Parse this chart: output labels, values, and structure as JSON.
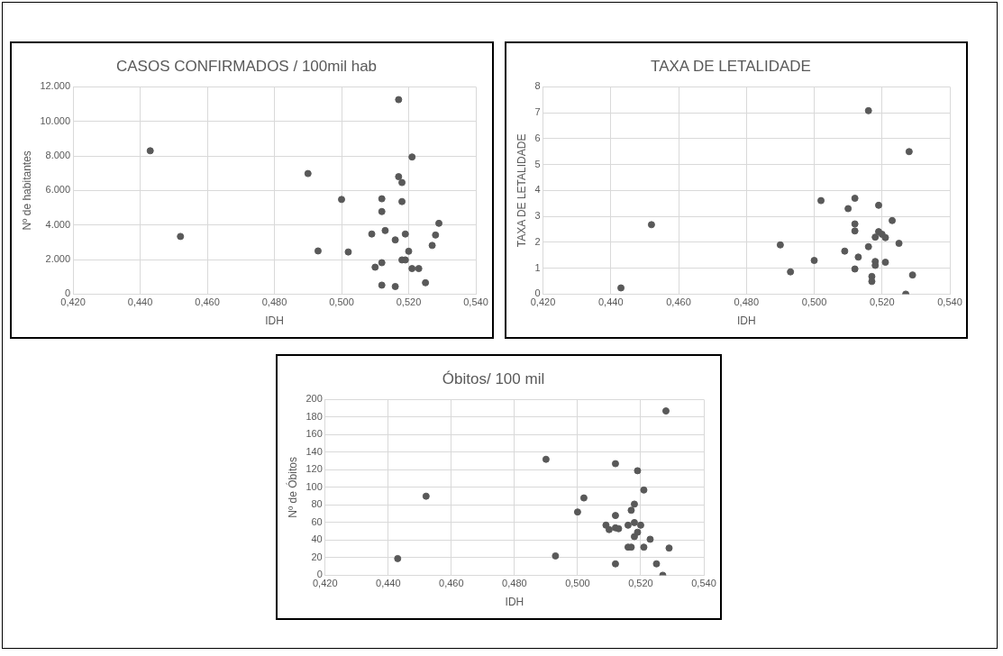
{
  "chart_data": [
    {
      "type": "scatter",
      "title": "CASOS CONFIRMADOS / 100mil hab",
      "xlabel": "IDH",
      "ylabel": "Nº de habitantes",
      "color": "#595959",
      "marker": "circle",
      "grid": true,
      "legend": false,
      "xlim": [
        0.42,
        0.54
      ],
      "xticks": [
        {
          "value": 0.42,
          "label": "0,420"
        },
        {
          "value": 0.44,
          "label": "0,440"
        },
        {
          "value": 0.46,
          "label": "0,460"
        },
        {
          "value": 0.48,
          "label": "0,480"
        },
        {
          "value": 0.5,
          "label": "0,500"
        },
        {
          "value": 0.52,
          "label": "0,520"
        },
        {
          "value": 0.54,
          "label": "0,540"
        }
      ],
      "ylim": [
        0,
        12000
      ],
      "yticks": [
        0,
        {
          "value": 2000,
          "label": "2.000"
        },
        {
          "value": 4000,
          "label": "4.000"
        },
        {
          "value": 6000,
          "label": "6.000"
        },
        {
          "value": 8000,
          "label": "8.000"
        },
        {
          "value": 10000,
          "label": "10.000"
        },
        {
          "value": 12000,
          "label": "12.000"
        }
      ],
      "x": [
        0.443,
        0.452,
        0.49,
        0.493,
        0.5,
        0.502,
        0.509,
        0.51,
        0.512,
        0.512,
        0.512,
        0.512,
        0.513,
        0.516,
        0.516,
        0.517,
        0.517,
        0.518,
        0.518,
        0.518,
        0.519,
        0.519,
        0.52,
        0.521,
        0.521,
        0.523,
        0.525,
        0.527,
        0.528,
        0.529
      ],
      "values": [
        8300,
        3340,
        6980,
        2500,
        5480,
        2440,
        3480,
        1560,
        5520,
        4780,
        1820,
        520,
        3680,
        3140,
        440,
        11260,
        6800,
        6460,
        5360,
        1980,
        1980,
        3480,
        2480,
        7940,
        1480,
        1480,
        660,
        2820,
        3420,
        4100
      ]
    },
    {
      "type": "scatter",
      "title": "TAXA DE LETALIDADE",
      "xlabel": "IDH",
      "ylabel": "TAXA DE LETALIDADE",
      "color": "#595959",
      "marker": "circle",
      "grid": true,
      "legend": false,
      "xlim": [
        0.42,
        0.54
      ],
      "xticks": [
        {
          "value": 0.42,
          "label": "0,420"
        },
        {
          "value": 0.44,
          "label": "0,440"
        },
        {
          "value": 0.46,
          "label": "0,460"
        },
        {
          "value": 0.48,
          "label": "0,480"
        },
        {
          "value": 0.5,
          "label": "0,500"
        },
        {
          "value": 0.52,
          "label": "0,520"
        },
        {
          "value": 0.54,
          "label": "0,540"
        }
      ],
      "ylim": [
        0,
        8
      ],
      "yticks": [
        0,
        1,
        2,
        3,
        4,
        5,
        6,
        7,
        8
      ],
      "x": [
        0.443,
        0.452,
        0.49,
        0.493,
        0.5,
        0.502,
        0.509,
        0.51,
        0.512,
        0.512,
        0.512,
        0.512,
        0.513,
        0.516,
        0.516,
        0.517,
        0.517,
        0.518,
        0.518,
        0.518,
        0.519,
        0.519,
        0.52,
        0.521,
        0.521,
        0.523,
        0.525,
        0.527,
        0.528,
        0.529
      ],
      "values": [
        0.24,
        2.68,
        1.9,
        0.86,
        1.3,
        3.61,
        1.66,
        3.3,
        3.7,
        2.71,
        2.44,
        0.97,
        1.43,
        7.08,
        1.83,
        0.68,
        0.49,
        2.2,
        1.26,
        1.11,
        3.43,
        2.41,
        2.31,
        2.18,
        1.23,
        2.84,
        1.96,
        0,
        5.5,
        0.74
      ]
    },
    {
      "type": "scatter",
      "title": "Óbitos/ 100 mil",
      "xlabel": "IDH",
      "ylabel": "Nº de Óbitos",
      "color": "#595959",
      "marker": "circle",
      "grid": true,
      "legend": false,
      "xlim": [
        0.42,
        0.54
      ],
      "xticks": [
        {
          "value": 0.42,
          "label": "0,420"
        },
        {
          "value": 0.44,
          "label": "0,440"
        },
        {
          "value": 0.46,
          "label": "0,460"
        },
        {
          "value": 0.48,
          "label": "0,480"
        },
        {
          "value": 0.5,
          "label": "0,500"
        },
        {
          "value": 0.52,
          "label": "0,520"
        },
        {
          "value": 0.54,
          "label": "0,540"
        }
      ],
      "ylim": [
        0,
        200
      ],
      "yticks": [
        0,
        20,
        40,
        60,
        80,
        100,
        120,
        140,
        160,
        180,
        200
      ],
      "x": [
        0.443,
        0.452,
        0.49,
        0.493,
        0.5,
        0.502,
        0.509,
        0.51,
        0.512,
        0.512,
        0.512,
        0.512,
        0.513,
        0.516,
        0.516,
        0.517,
        0.517,
        0.518,
        0.518,
        0.518,
        0.519,
        0.519,
        0.52,
        0.521,
        0.521,
        0.523,
        0.525,
        0.527,
        0.528,
        0.529
      ],
      "values": [
        19,
        90,
        132,
        22,
        72,
        88,
        57,
        52,
        127,
        68,
        54,
        13,
        53,
        57,
        32,
        74,
        32,
        81,
        60,
        44,
        119,
        49,
        57,
        97,
        32,
        41,
        13,
        0,
        187,
        31
      ]
    }
  ]
}
